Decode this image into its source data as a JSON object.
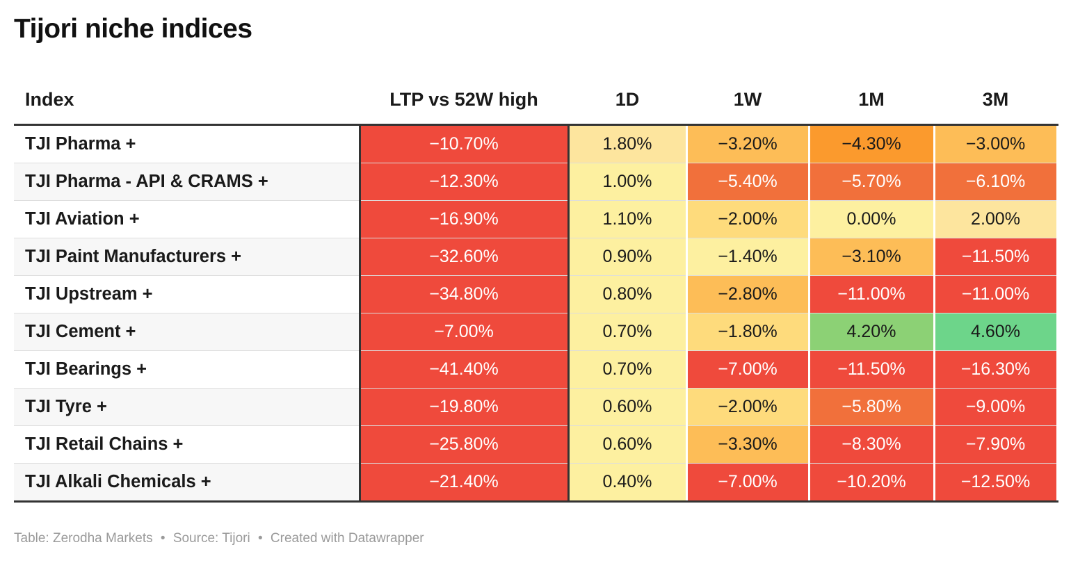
{
  "title": "Tijori niche indices",
  "footer": {
    "table_label": "Table: Zerodha Markets",
    "source_label": "Source: Tijori",
    "credit_label": "Created with Datawrapper",
    "separator": "•"
  },
  "chart_data": {
    "type": "table",
    "columns": [
      "Index",
      "LTP vs 52W high",
      "1D",
      "1W",
      "1M",
      "3M"
    ],
    "rows": [
      {
        "name": "TJI Pharma +",
        "values": [
          -10.7,
          1.8,
          -3.2,
          -4.3,
          -3.0
        ],
        "display": [
          "−10.70%",
          "1.80%",
          "−3.20%",
          "−4.30%",
          "−3.00%"
        ]
      },
      {
        "name": "TJI Pharma - API & CRAMS +",
        "values": [
          -12.3,
          1.0,
          -5.4,
          -5.7,
          -6.1
        ],
        "display": [
          "−12.30%",
          "1.00%",
          "−5.40%",
          "−5.70%",
          "−6.10%"
        ]
      },
      {
        "name": "TJI Aviation +",
        "values": [
          -16.9,
          1.1,
          -2.0,
          0.0,
          2.0
        ],
        "display": [
          "−16.90%",
          "1.10%",
          "−2.00%",
          "0.00%",
          "2.00%"
        ]
      },
      {
        "name": "TJI Paint Manufacturers +",
        "values": [
          -32.6,
          0.9,
          -1.4,
          -3.1,
          -11.5
        ],
        "display": [
          "−32.60%",
          "0.90%",
          "−1.40%",
          "−3.10%",
          "−11.50%"
        ]
      },
      {
        "name": "TJI Upstream +",
        "values": [
          -34.8,
          0.8,
          -2.8,
          -11.0,
          -11.0
        ],
        "display": [
          "−34.80%",
          "0.80%",
          "−2.80%",
          "−11.00%",
          "−11.00%"
        ]
      },
      {
        "name": "TJI Cement +",
        "values": [
          -7.0,
          0.7,
          -1.8,
          4.2,
          4.6
        ],
        "display": [
          "−7.00%",
          "0.70%",
          "−1.80%",
          "4.20%",
          "4.60%"
        ]
      },
      {
        "name": "TJI Bearings +",
        "values": [
          -41.4,
          0.7,
          -7.0,
          -11.5,
          -16.3
        ],
        "display": [
          "−41.40%",
          "0.70%",
          "−7.00%",
          "−11.50%",
          "−16.30%"
        ]
      },
      {
        "name": "TJI Tyre +",
        "values": [
          -19.8,
          0.6,
          -2.0,
          -5.8,
          -9.0
        ],
        "display": [
          "−19.80%",
          "0.60%",
          "−2.00%",
          "−5.80%",
          "−9.00%"
        ]
      },
      {
        "name": "TJI Retail Chains +",
        "values": [
          -25.8,
          0.6,
          -3.3,
          -8.3,
          -7.9
        ],
        "display": [
          "−25.80%",
          "0.60%",
          "−3.30%",
          "−8.30%",
          "−7.90%"
        ]
      },
      {
        "name": "TJI Alkali Chemicals +",
        "values": [
          -21.4,
          0.4,
          -7.0,
          -10.2,
          -12.5
        ],
        "display": [
          "−21.40%",
          "0.40%",
          "−7.00%",
          "−10.20%",
          "−12.50%"
        ]
      }
    ],
    "color_scale": {
      "strong_negative": "#ef4a3c",
      "negative": "#f1703b",
      "mild_negative": "#fb9a2d",
      "slight_negative": "#fdbd57",
      "near_zero_negative": "#fedb7c",
      "near_zero": "#fdf0a0",
      "small_positive": "#fde59e",
      "positive": "#8cd175",
      "strong_positive": "#6dd58a"
    }
  }
}
